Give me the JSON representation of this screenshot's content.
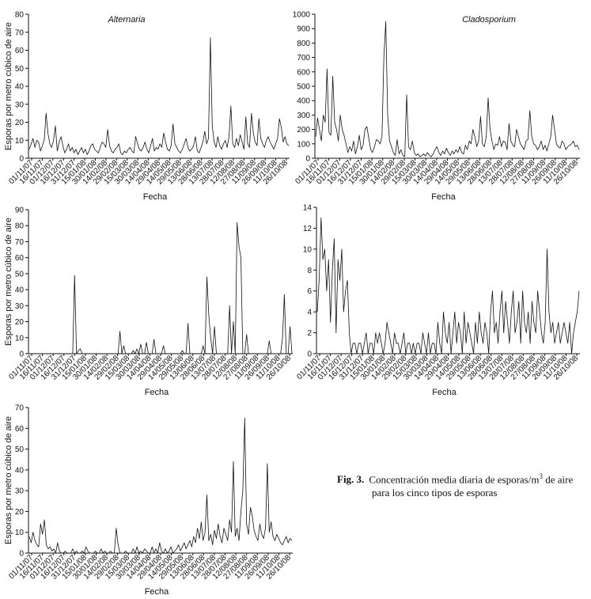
{
  "chart_data": [
    {
      "type": "line",
      "title": "Alternaria",
      "xlabel": "Fecha",
      "ylabel": "Esporas por metro cúbico de aire",
      "ylim": [
        0,
        80
      ],
      "yticks": [
        0,
        10,
        20,
        30,
        40,
        50,
        60,
        70,
        80
      ],
      "x_tick_labels": [
        "01/11/07",
        "16/11/07",
        "01/12/07",
        "16/12/07",
        "31/12/07",
        "15/01/08",
        "30/01/08",
        "14/02/08",
        "29/02/08",
        "15/03/08",
        "30/03/08",
        "14/04/08",
        "29/04/08",
        "14/05/08",
        "29/05/08",
        "13/06/08",
        "28/06/08",
        "13/07/08",
        "28/07/08",
        "12/08/08",
        "27/08/08",
        "11/09/08",
        "26/09/08",
        "11/10/08",
        "26/10/08"
      ],
      "series": [
        {
          "values": [
            5,
            8,
            11,
            6,
            10,
            9,
            4,
            7,
            10,
            25,
            14,
            8,
            6,
            10,
            18,
            4,
            9,
            12,
            7,
            3,
            5,
            8,
            4,
            6,
            3,
            5,
            2,
            4,
            6,
            3,
            5,
            2,
            4,
            7,
            8,
            5,
            4,
            3,
            6,
            9,
            8,
            6,
            16,
            7,
            4,
            3,
            5,
            6,
            8,
            3,
            2,
            4,
            3,
            5,
            6,
            4,
            3,
            12,
            8,
            5,
            4,
            6,
            9,
            5,
            3,
            7,
            11,
            4,
            6,
            5,
            8,
            6,
            14,
            9,
            5,
            4,
            7,
            19,
            8,
            6,
            4,
            3,
            5,
            8,
            11,
            6,
            4,
            5,
            7,
            12,
            4,
            3,
            6,
            9,
            15,
            8,
            11,
            67,
            18,
            9,
            6,
            12,
            7,
            5,
            8,
            10,
            6,
            12,
            29,
            8,
            6,
            11,
            7,
            13,
            9,
            5,
            23,
            8,
            6,
            25,
            14,
            9,
            7,
            22,
            11,
            8,
            6,
            10,
            12,
            9,
            7,
            5,
            8,
            11,
            22,
            17,
            9,
            12,
            8,
            7
          ]
        }
      ]
    },
    {
      "type": "line",
      "title": "Cladosporium",
      "xlabel": "Fecha",
      "ylabel": "",
      "ylim": [
        0,
        1000
      ],
      "yticks": [
        0,
        100,
        200,
        300,
        400,
        500,
        600,
        700,
        800,
        900,
        1000
      ],
      "x_tick_labels": [
        "01/11/07",
        "16/11/07",
        "01/12/07",
        "16/12/07",
        "31/12/07",
        "15/01/08",
        "30/01/08",
        "14/02/08",
        "29/02/08",
        "15/03/08",
        "30/03/08",
        "14/04/08",
        "29/04/08",
        "14/05/08",
        "29/05/08",
        "13/06/08",
        "28/06/08",
        "13/07/08",
        "28/07/08",
        "12/08/08",
        "27/08/08",
        "11/09/08",
        "26/09/08",
        "11/10/08",
        "26/10/08"
      ],
      "series": [
        {
          "values": [
            150,
            280,
            200,
            120,
            300,
            250,
            620,
            180,
            160,
            570,
            250,
            200,
            120,
            300,
            200,
            160,
            100,
            40,
            80,
            50,
            120,
            30,
            80,
            160,
            60,
            90,
            200,
            220,
            140,
            60,
            40,
            80,
            130,
            120,
            100,
            150,
            700,
            950,
            300,
            120,
            80,
            40,
            20,
            130,
            30,
            60,
            20,
            10,
            440,
            80,
            60,
            120,
            40,
            20,
            30,
            10,
            20,
            30,
            15,
            40,
            20,
            10,
            30,
            60,
            80,
            40,
            20,
            50,
            30,
            70,
            40,
            20,
            50,
            30,
            60,
            40,
            80,
            40,
            30,
            90,
            60,
            120,
            100,
            200,
            150,
            80,
            120,
            290,
            100,
            80,
            150,
            420,
            200,
            120,
            60,
            100,
            90,
            150,
            80,
            120,
            110,
            60,
            240,
            120,
            90,
            80,
            200,
            150,
            100,
            80,
            60,
            120,
            130,
            330,
            150,
            100,
            90,
            60,
            80,
            120,
            60,
            90,
            50,
            100,
            150,
            300,
            200,
            100,
            80,
            70,
            120,
            100,
            60,
            80,
            90,
            100,
            120,
            80,
            90,
            60
          ]
        }
      ]
    },
    {
      "type": "line",
      "title": "",
      "xlabel": "Fecha",
      "ylabel": "Esporas por metro cúbico de aire",
      "ylim": [
        0,
        90
      ],
      "yticks": [
        0,
        10,
        20,
        30,
        40,
        50,
        60,
        70,
        80,
        90
      ],
      "x_tick_labels": [
        "01/11/07",
        "16/11/07",
        "01/12/07",
        "16/12/07",
        "31/12/07",
        "15/01/08",
        "30/01/08",
        "14/02/08",
        "29/02/08",
        "15/03/08",
        "30/03/08",
        "14/04/08",
        "29/04/08",
        "14/05/08",
        "29/05/08",
        "13/06/08",
        "28/06/08",
        "13/07/08",
        "28/07/08",
        "12/08/08",
        "27/08/08",
        "11/09/08",
        "26/09/08",
        "11/10/08",
        "26/10/08"
      ],
      "series": [
        {
          "values": [
            0,
            0,
            0,
            0,
            0,
            0,
            0,
            0,
            0,
            0,
            0,
            0,
            0,
            0,
            0,
            0,
            0,
            0,
            0,
            0,
            0,
            0,
            0,
            0,
            49,
            0,
            2,
            3,
            0,
            0,
            0,
            0,
            0,
            0,
            0,
            0,
            0,
            0,
            0,
            0,
            0,
            0,
            0,
            0,
            0,
            0,
            0,
            0,
            14,
            0,
            5,
            0,
            0,
            0,
            0,
            2,
            0,
            3,
            0,
            6,
            0,
            0,
            7,
            0,
            0,
            0,
            9,
            0,
            0,
            0,
            0,
            5,
            0,
            0,
            0,
            0,
            0,
            0,
            0,
            0,
            0,
            2,
            0,
            0,
            19,
            0,
            0,
            0,
            0,
            0,
            0,
            0,
            5,
            0,
            48,
            24,
            10,
            0,
            17,
            0,
            0,
            0,
            0,
            0,
            0,
            0,
            30,
            0,
            20,
            0,
            82,
            67,
            60,
            0,
            0,
            12,
            0,
            0,
            0,
            0,
            0,
            0,
            0,
            0,
            0,
            0,
            0,
            8,
            0,
            0,
            0,
            0,
            0,
            0,
            10,
            37,
            0,
            0,
            17,
            0
          ]
        }
      ]
    },
    {
      "type": "line",
      "title": "",
      "xlabel": "Fecha",
      "ylabel": "",
      "ylim": [
        0,
        14
      ],
      "yticks": [
        0,
        2,
        4,
        6,
        8,
        10,
        12,
        14
      ],
      "x_tick_labels": [
        "01/11/07",
        "16/11/07",
        "01/12/07",
        "16/12/07",
        "31/12/07",
        "15/01/08",
        "30/01/08",
        "14/02/08",
        "29/02/08",
        "15/03/08",
        "30/03/08",
        "14/04/08",
        "29/04/08",
        "14/05/08",
        "29/05/08",
        "13/06/08",
        "28/06/08",
        "13/07/08",
        "28/07/08",
        "12/08/08",
        "27/08/08",
        "11/09/08",
        "26/09/08",
        "11/10/08",
        "26/10/08"
      ],
      "series": [
        {
          "values": [
            4,
            7,
            13,
            9,
            10,
            6,
            9,
            3,
            8,
            11,
            2,
            9,
            7,
            10,
            4,
            6,
            7,
            2,
            0,
            1,
            1,
            0,
            1,
            1,
            0,
            1,
            2,
            0,
            1,
            1,
            0,
            2,
            1,
            2,
            1,
            0,
            1,
            3,
            2,
            1,
            0,
            2,
            1,
            1,
            0,
            1,
            2,
            0,
            1,
            1,
            0,
            1,
            0,
            1,
            1,
            0,
            2,
            1,
            0,
            2,
            0,
            1,
            1,
            0,
            3,
            1,
            0,
            4,
            2,
            1,
            3,
            0,
            2,
            4,
            1,
            3,
            2,
            0,
            4,
            1,
            3,
            2,
            1,
            0,
            3,
            1,
            4,
            2,
            1,
            3,
            2,
            0,
            4,
            6,
            2,
            3,
            1,
            4,
            6,
            2,
            5,
            3,
            1,
            4,
            6,
            2,
            3,
            5,
            1,
            6,
            3,
            2,
            4,
            1,
            5,
            3,
            2,
            6,
            4,
            2,
            1,
            3,
            10,
            4,
            2,
            3,
            1,
            2,
            3,
            1,
            2,
            3,
            2,
            1,
            3,
            0,
            2,
            3,
            4,
            6
          ]
        }
      ]
    },
    {
      "type": "line",
      "title": "",
      "xlabel": "Fecha",
      "ylabel": "Esporas por metro cúbico de aire",
      "ylim": [
        0,
        70
      ],
      "yticks": [
        0,
        10,
        20,
        30,
        40,
        50,
        60,
        70
      ],
      "x_tick_labels": [
        "01/11/07",
        "16/11/07",
        "01/12/07",
        "16/12/07",
        "31/12/07",
        "15/01/08",
        "30/01/08",
        "14/02/08",
        "29/02/08",
        "15/03/08",
        "30/03/08",
        "14/04/08",
        "29/04/08",
        "14/05/08",
        "29/05/08",
        "13/06/08",
        "28/06/08",
        "13/07/08",
        "28/07/08",
        "12/08/08",
        "27/08/08",
        "11/09/08",
        "26/09/08",
        "11/10/08",
        "26/10/08"
      ],
      "series": [
        {
          "values": [
            8,
            5,
            10,
            6,
            4,
            3,
            14,
            9,
            16,
            4,
            2,
            3,
            1,
            2,
            0,
            5,
            1,
            0,
            0,
            1,
            0,
            0,
            0,
            2,
            0,
            1,
            0,
            0,
            1,
            0,
            3,
            1,
            0,
            0,
            0,
            1,
            0,
            0,
            2,
            0,
            1,
            0,
            0,
            1,
            0,
            0,
            12,
            4,
            0,
            0,
            0,
            1,
            0,
            0,
            0,
            2,
            0,
            3,
            0,
            1,
            0,
            2,
            1,
            0,
            0,
            3,
            0,
            2,
            0,
            5,
            1,
            0,
            2,
            0,
            1,
            3,
            0,
            1,
            2,
            4,
            1,
            3,
            5,
            2,
            4,
            6,
            3,
            8,
            5,
            12,
            7,
            15,
            6,
            10,
            28,
            6,
            9,
            4,
            11,
            7,
            14,
            8,
            5,
            12,
            9,
            6,
            16,
            10,
            44,
            8,
            12,
            6,
            20,
            30,
            65,
            14,
            9,
            22,
            18,
            11,
            8,
            6,
            14,
            9,
            7,
            12,
            43,
            10,
            15,
            8,
            6,
            9,
            7,
            5,
            4,
            6,
            8,
            5,
            7,
            6
          ]
        }
      ]
    }
  ],
  "caption": {
    "label": "Fig. 3.",
    "line1": "Concentración media diaria de esporas/m",
    "superscript": "3",
    "line1_end": " de aire",
    "line2": "para los cinco tipos de esporas"
  }
}
